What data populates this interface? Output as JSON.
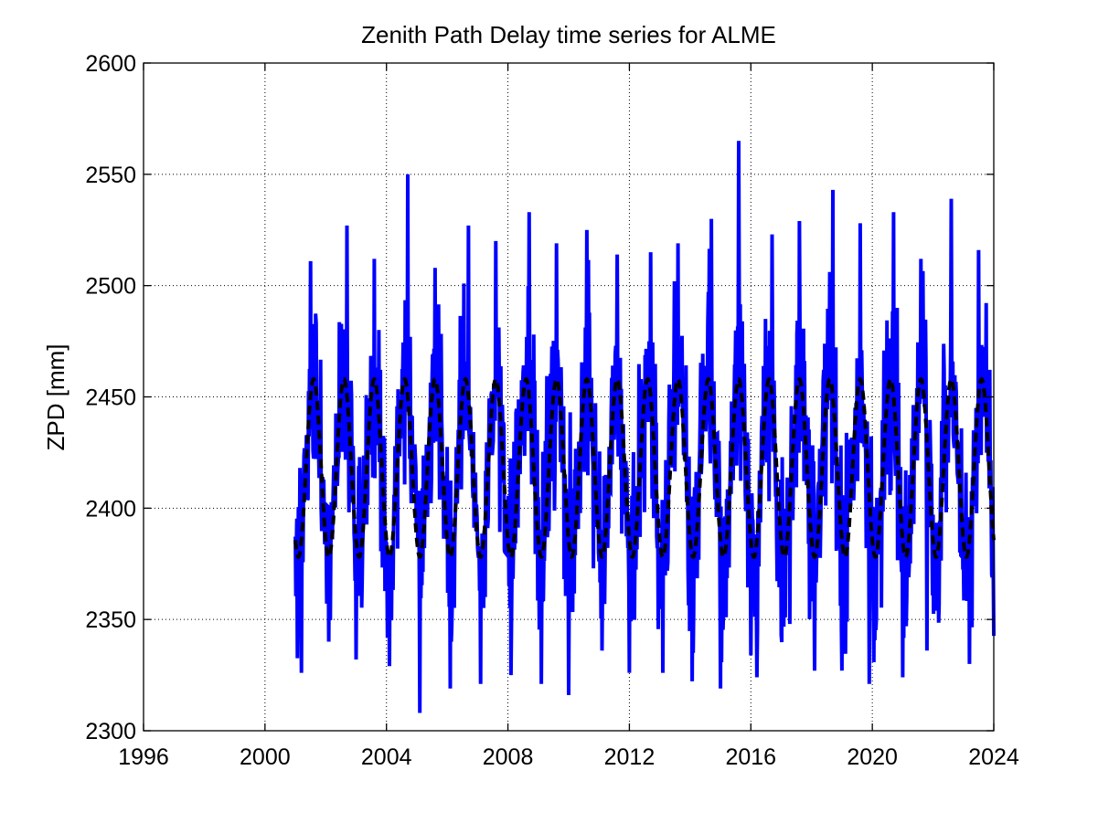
{
  "chart_data": {
    "type": "line",
    "title": "Zenith Path Delay time series for ALME",
    "xlabel": "",
    "ylabel": "ZPD [mm]",
    "xlim": [
      1996,
      2024
    ],
    "ylim": [
      2300,
      2600
    ],
    "xticks": [
      1996,
      2000,
      2004,
      2008,
      2012,
      2016,
      2020,
      2024
    ],
    "yticks": [
      2300,
      2350,
      2400,
      2450,
      2500,
      2550,
      2600
    ],
    "xtick_labels": [
      "1996",
      "2000",
      "2004",
      "2008",
      "2012",
      "2016",
      "2020",
      "2024"
    ],
    "ytick_labels": [
      "2300",
      "2350",
      "2400",
      "2450",
      "2500",
      "2550",
      "2600"
    ],
    "grid": true,
    "legend": "none",
    "series": [
      {
        "style": "solid",
        "color": "#0000ff",
        "x_range": [
          2001.0,
          2024.0
        ],
        "approx_mean": 2418,
        "approx_seasonal_amplitude": 38,
        "observed_min": 2308,
        "observed_max": 2565,
        "peak_extremes": [
          {
            "x": 2001.5,
            "y": 2511
          },
          {
            "x": 2002.7,
            "y": 2527
          },
          {
            "x": 2003.6,
            "y": 2512
          },
          {
            "x": 2004.7,
            "y": 2550
          },
          {
            "x": 2005.6,
            "y": 2508
          },
          {
            "x": 2006.7,
            "y": 2527
          },
          {
            "x": 2007.6,
            "y": 2520
          },
          {
            "x": 2008.7,
            "y": 2533
          },
          {
            "x": 2009.6,
            "y": 2519
          },
          {
            "x": 2010.6,
            "y": 2525
          },
          {
            "x": 2011.6,
            "y": 2514
          },
          {
            "x": 2012.7,
            "y": 2515
          },
          {
            "x": 2013.6,
            "y": 2519
          },
          {
            "x": 2014.7,
            "y": 2530
          },
          {
            "x": 2015.6,
            "y": 2565
          },
          {
            "x": 2016.7,
            "y": 2523
          },
          {
            "x": 2017.6,
            "y": 2529
          },
          {
            "x": 2018.7,
            "y": 2543
          },
          {
            "x": 2019.6,
            "y": 2528
          },
          {
            "x": 2020.7,
            "y": 2533
          },
          {
            "x": 2021.6,
            "y": 2512
          },
          {
            "x": 2022.6,
            "y": 2539
          },
          {
            "x": 2023.5,
            "y": 2516
          }
        ],
        "trough_extremes": [
          {
            "x": 2001.2,
            "y": 2326
          },
          {
            "x": 2002.1,
            "y": 2340
          },
          {
            "x": 2003.0,
            "y": 2332
          },
          {
            "x": 2004.1,
            "y": 2329
          },
          {
            "x": 2005.1,
            "y": 2308
          },
          {
            "x": 2006.1,
            "y": 2319
          },
          {
            "x": 2007.1,
            "y": 2321
          },
          {
            "x": 2008.1,
            "y": 2325
          },
          {
            "x": 2009.1,
            "y": 2321
          },
          {
            "x": 2010.0,
            "y": 2316
          },
          {
            "x": 2011.1,
            "y": 2336
          },
          {
            "x": 2012.0,
            "y": 2326
          },
          {
            "x": 2013.1,
            "y": 2326
          },
          {
            "x": 2014.1,
            "y": 2335
          },
          {
            "x": 2015.0,
            "y": 2319
          },
          {
            "x": 2016.2,
            "y": 2324
          },
          {
            "x": 2017.0,
            "y": 2343
          },
          {
            "x": 2018.1,
            "y": 2327
          },
          {
            "x": 2019.0,
            "y": 2327
          },
          {
            "x": 2019.9,
            "y": 2321
          },
          {
            "x": 2021.0,
            "y": 2324
          },
          {
            "x": 2021.8,
            "y": 2336
          },
          {
            "x": 2023.2,
            "y": 2330
          }
        ]
      },
      {
        "style": "dashed",
        "color": "#000000",
        "x_range": [
          2001.0,
          2024.0
        ],
        "mean": 2418,
        "amplitude": 40,
        "period_years": 1.0,
        "peak_phase_year_fraction": 0.6
      }
    ]
  }
}
